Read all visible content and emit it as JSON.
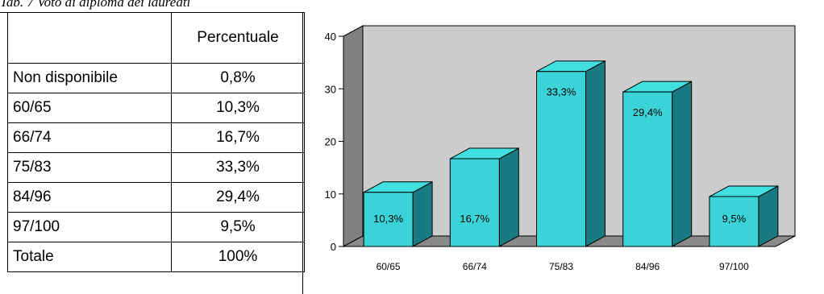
{
  "caption": "Tab. 7 Voto di diploma dei laureati",
  "table": {
    "header": [
      "",
      "Percentuale"
    ],
    "rows": [
      [
        "Non disponibile",
        "0,8%"
      ],
      [
        "60/65",
        "10,3%"
      ],
      [
        "66/74",
        "16,7%"
      ],
      [
        "75/83",
        "33,3%"
      ],
      [
        "84/96",
        "29,4%"
      ],
      [
        "97/100",
        "9,5%"
      ],
      [
        "Totale",
        "100%"
      ]
    ]
  },
  "colors": {
    "bar_front": "#3ad4d8",
    "bar_top": "#40e0e0",
    "bar_side": "#1a7a82",
    "wall": "#cccccc",
    "side_wall": "#808080",
    "floor": "#8a8a8a"
  },
  "chart_data": {
    "type": "bar",
    "style": "3d-column",
    "categories": [
      "60/65",
      "66/74",
      "75/83",
      "84/96",
      "97/100"
    ],
    "values": [
      10.3,
      16.7,
      33.3,
      29.4,
      9.5
    ],
    "data_labels": [
      "10,3%",
      "16,7%",
      "33,3%",
      "29,4%",
      "9,5%"
    ],
    "yticks": [
      "0",
      "10",
      "20",
      "30",
      "40"
    ],
    "ylim": [
      0,
      40
    ],
    "grid": false,
    "legend": "none"
  }
}
